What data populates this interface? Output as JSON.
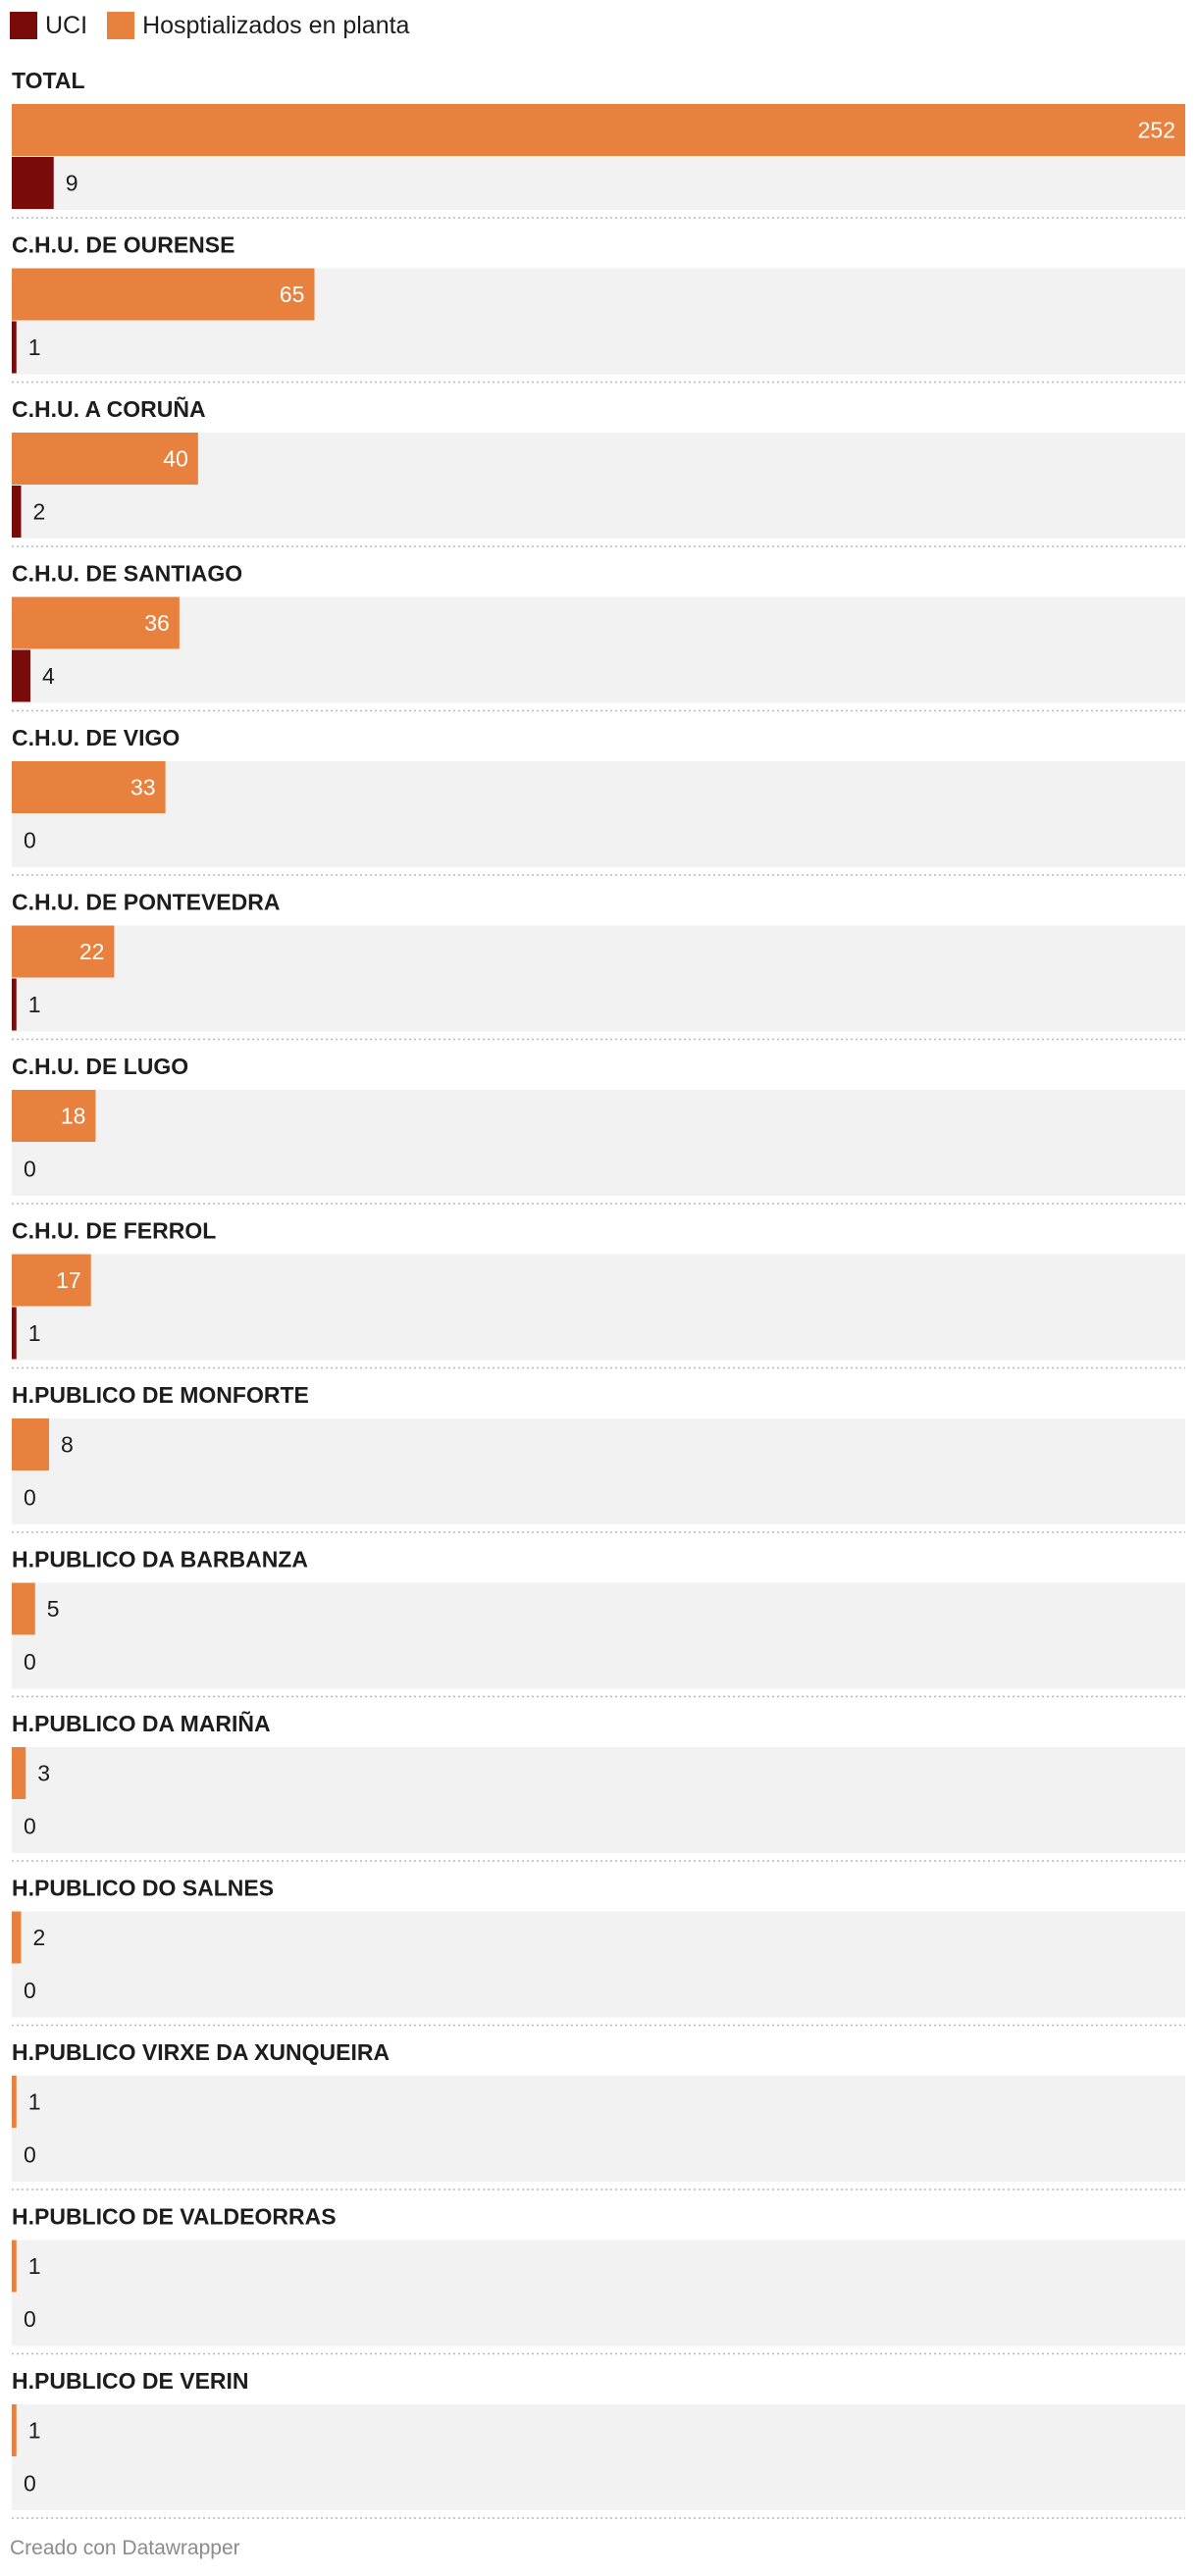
{
  "legend": [
    {
      "label": "UCI",
      "color": "#7a0b0b"
    },
    {
      "label": "Hosptializados en planta",
      "color": "#e8803e"
    }
  ],
  "footer": "Creado con Datawrapper",
  "chart_data": {
    "type": "bar",
    "orientation": "horizontal",
    "grouping": "grouped",
    "categories": [
      "TOTAL",
      "C.H.U. DE OURENSE",
      "C.H.U. A CORUÑA",
      "C.H.U. DE SANTIAGO",
      "C.H.U. DE VIGO",
      "C.H.U. DE PONTEVEDRA",
      "C.H.U. DE LUGO",
      "C.H.U. DE FERROL",
      "H.PUBLICO DE MONFORTE",
      "H.PUBLICO DA BARBANZA",
      "H.PUBLICO DA MARIÑA",
      "H.PUBLICO DO SALNES",
      "H.PUBLICO VIRXE DA XUNQUEIRA",
      "H.PUBLICO DE VALDEORRAS",
      "H.PUBLICO DE VERIN"
    ],
    "series": [
      {
        "name": "Hosptializados en planta",
        "color": "#e8803e",
        "values": [
          252,
          65,
          40,
          36,
          33,
          22,
          18,
          17,
          8,
          5,
          3,
          2,
          1,
          1,
          1
        ]
      },
      {
        "name": "UCI",
        "color": "#7a0b0b",
        "values": [
          9,
          1,
          2,
          4,
          0,
          1,
          0,
          1,
          0,
          0,
          0,
          0,
          0,
          0,
          0
        ]
      }
    ],
    "xlim": [
      0,
      252
    ],
    "background_color": "#f2f2f2",
    "data_labels": true,
    "legend_position": "top-left"
  }
}
